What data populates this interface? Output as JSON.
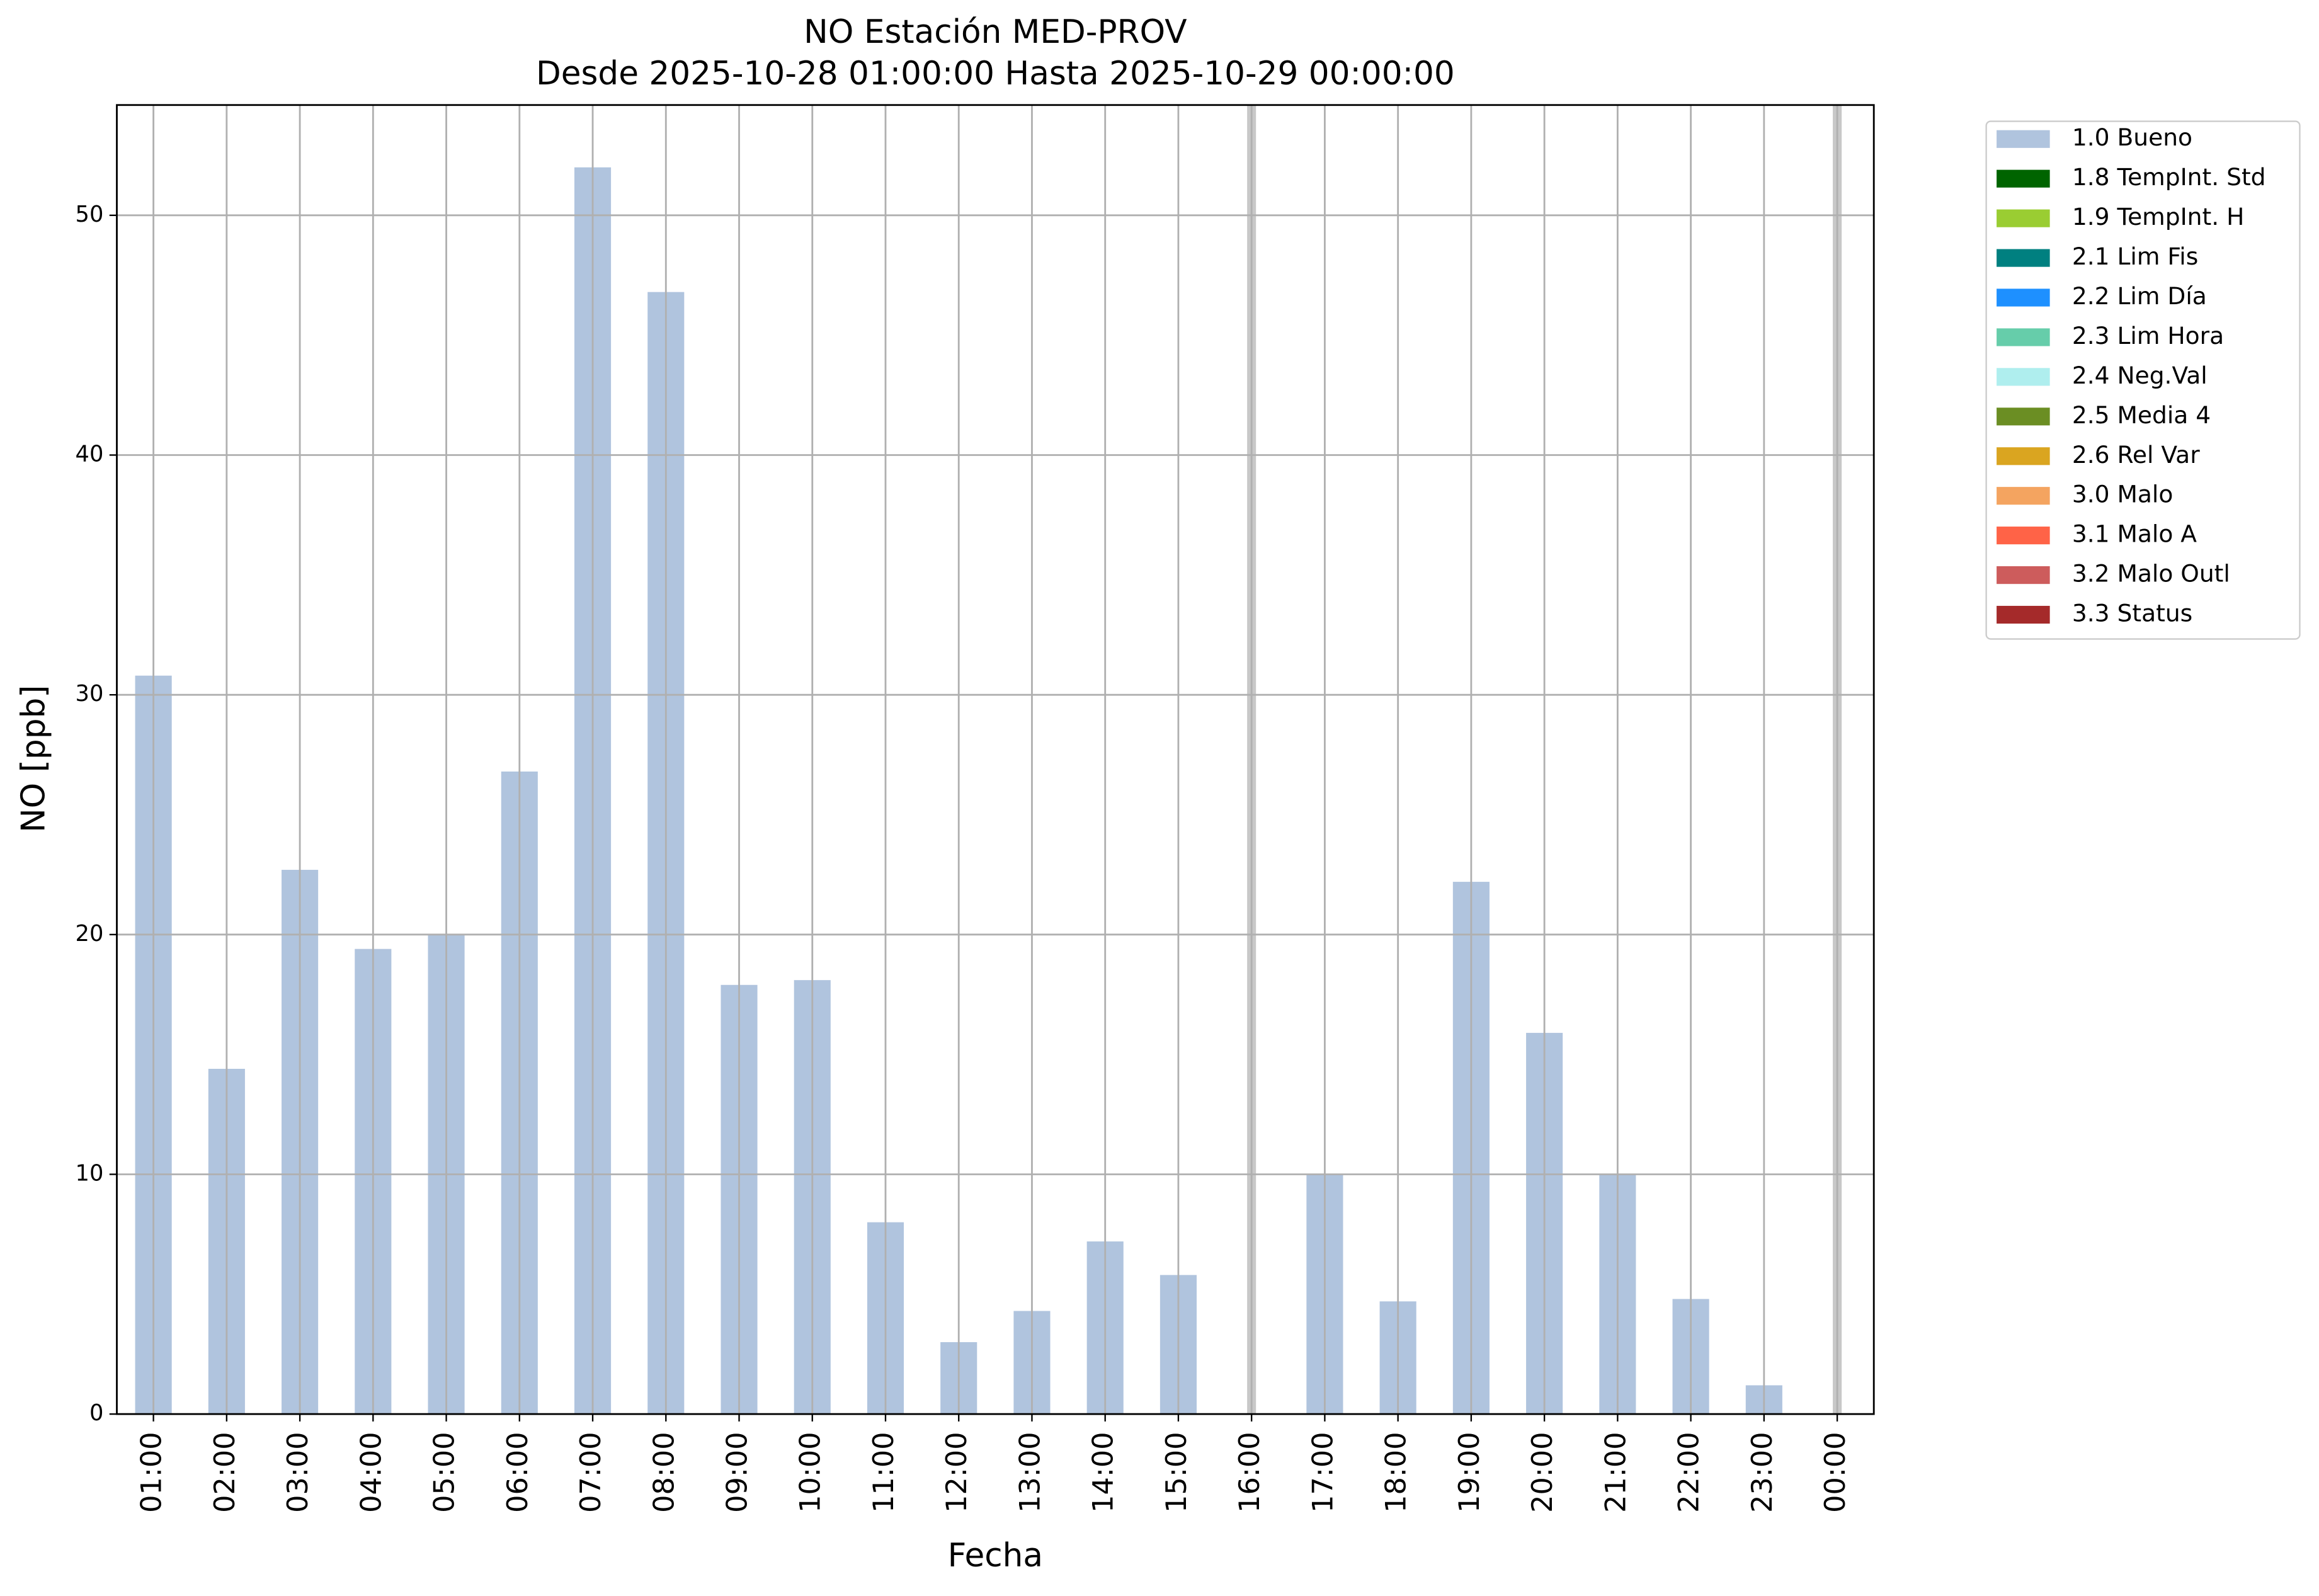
{
  "chart_data": {
    "type": "bar",
    "title": "NO Estación MED-PROV",
    "subtitle": "Desde 2025-10-28 01:00:00 Hasta 2025-10-29 00:00:00",
    "x_label": "Fecha",
    "y_label": "NO [ppb]",
    "categories": [
      "01:00",
      "02:00",
      "03:00",
      "04:00",
      "05:00",
      "06:00",
      "07:00",
      "08:00",
      "09:00",
      "10:00",
      "11:00",
      "12:00",
      "13:00",
      "14:00",
      "15:00",
      "16:00",
      "17:00",
      "18:00",
      "19:00",
      "20:00",
      "21:00",
      "22:00",
      "23:00",
      "00:00"
    ],
    "series": [
      {
        "name": "1.0 Bueno",
        "color": "#b0c4de",
        "values": [
          30.8,
          14.4,
          22.7,
          19.4,
          20.0,
          26.8,
          52.0,
          46.8,
          17.9,
          18.1,
          8.0,
          3.0,
          4.3,
          7.2,
          5.8,
          null,
          10.0,
          4.7,
          22.2,
          15.9,
          10.0,
          4.8,
          1.2,
          null
        ]
      }
    ],
    "legend": [
      {
        "name": "1.0 Bueno",
        "color": "#b0c4de"
      },
      {
        "name": "1.8 TempInt. Std",
        "color": "#006400"
      },
      {
        "name": "1.9 TempInt. H",
        "color": "#9acd32"
      },
      {
        "name": "2.1 Lim Fis",
        "color": "#008080"
      },
      {
        "name": "2.2 Lim Día",
        "color": "#1e90ff"
      },
      {
        "name": "2.3 Lim Hora",
        "color": "#66cdaa"
      },
      {
        "name": "2.4 Neg.Val",
        "color": "#afeeee"
      },
      {
        "name": "2.5 Media 4",
        "color": "#6b8e23"
      },
      {
        "name": "2.6 Rel Var",
        "color": "#daa520"
      },
      {
        "name": "3.0 Malo",
        "color": "#f4a460"
      },
      {
        "name": "3.1 Malo A",
        "color": "#ff6347"
      },
      {
        "name": "3.2 Malo Outl",
        "color": "#cd5c5c"
      },
      {
        "name": "3.3 Status",
        "color": "#a52a2a"
      }
    ],
    "legend_position": "outside right",
    "ylim": [
      0,
      54.6
    ],
    "yticks": [
      0,
      10,
      20,
      30,
      40,
      50
    ],
    "grid": true
  }
}
